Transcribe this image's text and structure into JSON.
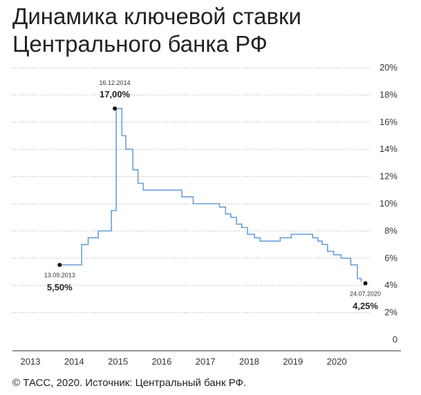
{
  "title_lines": [
    "Динамика ключевой ставки",
    "Центрального банка РФ"
  ],
  "source": "© ТАСС, 2020. Источник: Центральный банк РФ.",
  "chart_data": {
    "type": "line",
    "title": "Динамика ключевой ставки Центрального банка РФ",
    "y_tick_labels": [
      "0",
      "2%",
      "4%",
      "6%",
      "8%",
      "10%",
      "12%",
      "14%",
      "16%",
      "18%",
      "20%"
    ],
    "x_tick_labels": [
      "2013",
      "2014",
      "2015",
      "2016",
      "2017",
      "2018",
      "2019",
      "2020"
    ],
    "ylim": [
      0,
      20
    ],
    "xlim": [
      2012.8,
      2020.9
    ],
    "grid": "horizontal dotted",
    "y_axis_position": "right",
    "series": [
      {
        "color": "#6a9fd8",
        "points": [
          [
            2013.7,
            5.5
          ],
          [
            2014.17,
            5.5
          ],
          [
            2014.17,
            7.0
          ],
          [
            2014.32,
            7.0
          ],
          [
            2014.32,
            7.5
          ],
          [
            2014.55,
            7.5
          ],
          [
            2014.55,
            8.0
          ],
          [
            2014.85,
            8.0
          ],
          [
            2014.85,
            9.5
          ],
          [
            2014.96,
            9.5
          ],
          [
            2014.96,
            17.0
          ],
          [
            2015.09,
            17.0
          ],
          [
            2015.09,
            15.0
          ],
          [
            2015.18,
            15.0
          ],
          [
            2015.18,
            14.0
          ],
          [
            2015.34,
            14.0
          ],
          [
            2015.34,
            12.5
          ],
          [
            2015.46,
            12.5
          ],
          [
            2015.46,
            11.5
          ],
          [
            2015.58,
            11.5
          ],
          [
            2015.58,
            11.0
          ],
          [
            2016.46,
            11.0
          ],
          [
            2016.46,
            10.5
          ],
          [
            2016.72,
            10.5
          ],
          [
            2016.72,
            10.0
          ],
          [
            2017.32,
            10.0
          ],
          [
            2017.32,
            9.75
          ],
          [
            2017.46,
            9.75
          ],
          [
            2017.46,
            9.25
          ],
          [
            2017.58,
            9.25
          ],
          [
            2017.58,
            9.0
          ],
          [
            2017.71,
            9.0
          ],
          [
            2017.71,
            8.5
          ],
          [
            2017.83,
            8.5
          ],
          [
            2017.83,
            8.25
          ],
          [
            2017.96,
            8.25
          ],
          [
            2017.96,
            7.75
          ],
          [
            2018.12,
            7.75
          ],
          [
            2018.12,
            7.5
          ],
          [
            2018.25,
            7.5
          ],
          [
            2018.25,
            7.25
          ],
          [
            2018.71,
            7.25
          ],
          [
            2018.71,
            7.5
          ],
          [
            2018.96,
            7.5
          ],
          [
            2018.96,
            7.75
          ],
          [
            2019.45,
            7.75
          ],
          [
            2019.45,
            7.5
          ],
          [
            2019.57,
            7.5
          ],
          [
            2019.57,
            7.25
          ],
          [
            2019.67,
            7.25
          ],
          [
            2019.67,
            7.0
          ],
          [
            2019.79,
            7.0
          ],
          [
            2019.79,
            6.5
          ],
          [
            2019.93,
            6.5
          ],
          [
            2019.93,
            6.25
          ],
          [
            2020.1,
            6.25
          ],
          [
            2020.1,
            6.0
          ],
          [
            2020.32,
            6.0
          ],
          [
            2020.32,
            5.5
          ],
          [
            2020.47,
            5.5
          ],
          [
            2020.47,
            4.5
          ],
          [
            2020.56,
            4.5
          ],
          [
            2020.56,
            4.25
          ]
        ]
      }
    ],
    "annotations": [
      {
        "date": "13.09.2013",
        "value_label": "5,50%",
        "x": 2013.7,
        "y": 5.5,
        "label_pos": "below"
      },
      {
        "date": "16.12.2014",
        "value_label": "17,00%",
        "x": 2014.96,
        "y": 17.0,
        "label_pos": "above"
      },
      {
        "date": "24.07.2020",
        "value_label": "4,25%",
        "x": 2020.56,
        "y": 4.25,
        "label_pos": "below"
      }
    ]
  }
}
